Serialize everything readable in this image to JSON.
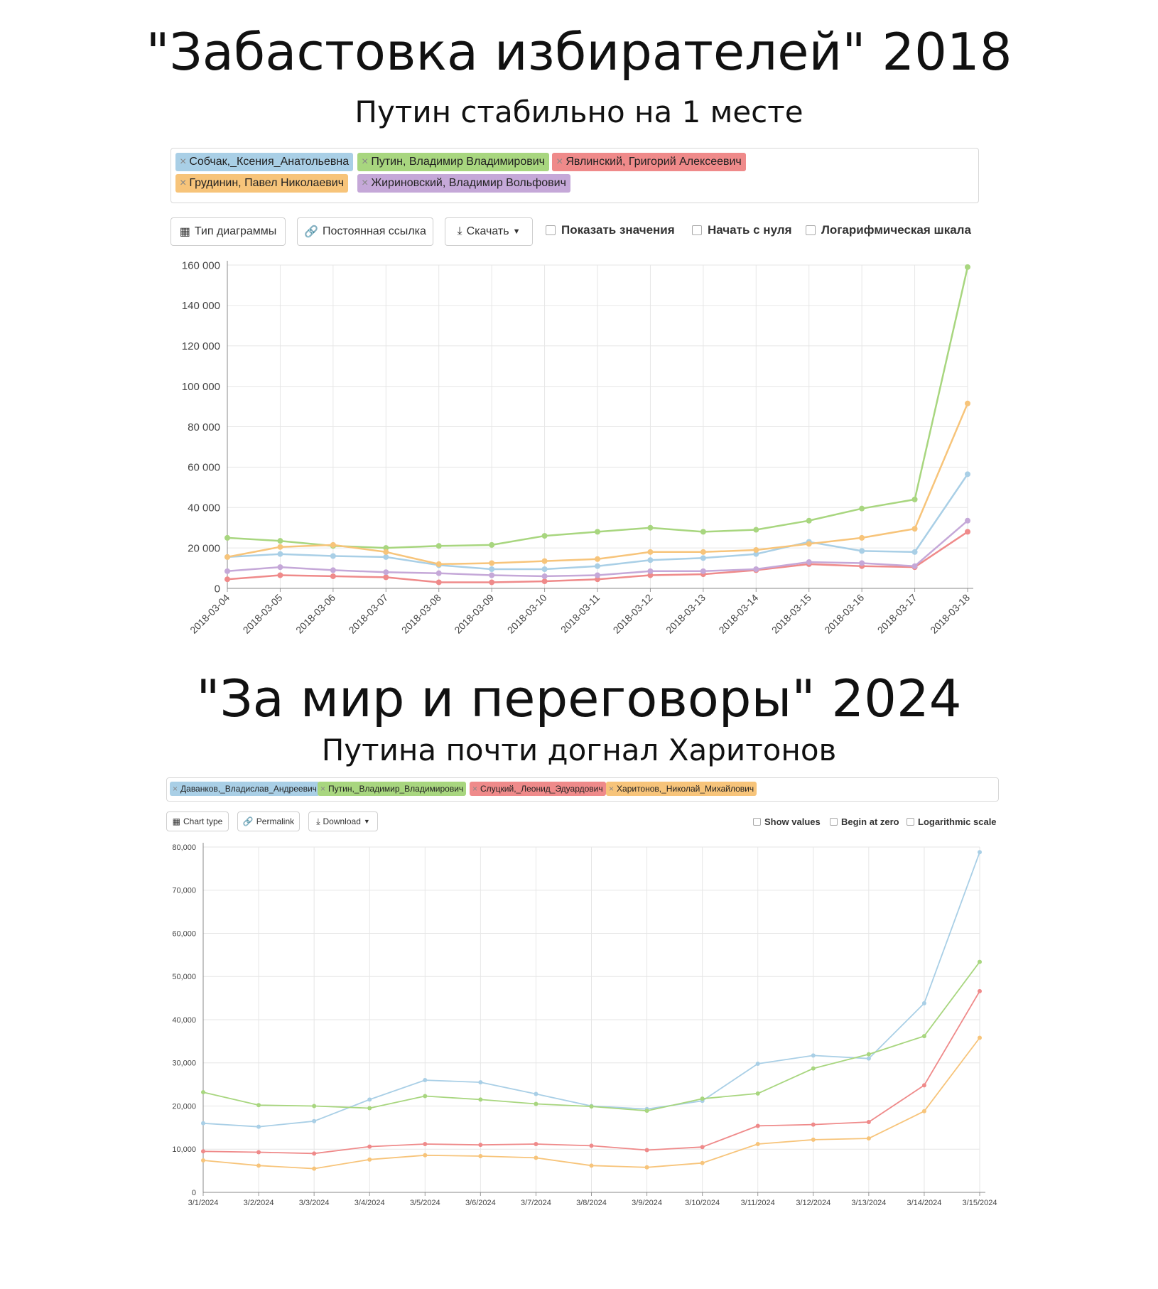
{
  "section1": {
    "title": "\"Забастовка избирателей\" 2018",
    "subtitle": "Путин стабильно на 1 месте",
    "toolbar": {
      "chart_type": "Тип диаграммы",
      "permalink": "Постоянная ссылка",
      "download": "Скачать",
      "show_values": "Показать значения",
      "begin_at_zero": "Начать с нуля",
      "log_scale": "Логарифмическая шкала"
    }
  },
  "section2": {
    "title": "\"За мир и переговоры\" 2024",
    "subtitle": "Путина почти догнал Харитонов",
    "toolbar": {
      "chart_type": "Chart type",
      "permalink": "Permalink",
      "download": "Download",
      "show_values": "Show values",
      "begin_at_zero": "Begin at zero",
      "log_scale": "Logarithmic scale"
    }
  },
  "icons": {
    "chart_type": "grid-icon",
    "permalink": "link-icon",
    "download": "download-icon",
    "remove": "close-icon"
  },
  "chart_data": [
    {
      "type": "line",
      "x": [
        "2018-03-04",
        "2018-03-05",
        "2018-03-06",
        "2018-03-07",
        "2018-03-08",
        "2018-03-09",
        "2018-03-10",
        "2018-03-11",
        "2018-03-12",
        "2018-03-13",
        "2018-03-14",
        "2018-03-15",
        "2018-03-16",
        "2018-03-17",
        "2018-03-18"
      ],
      "ylim": [
        0,
        160000
      ],
      "yticks": [
        0,
        20000,
        40000,
        60000,
        80000,
        100000,
        120000,
        140000,
        160000
      ],
      "ytick_labels": [
        "0",
        "20 000",
        "40 000",
        "60 000",
        "80 000",
        "100 000",
        "120 000",
        "140 000",
        "160 000"
      ],
      "grid": true,
      "legend_position": "top",
      "series": [
        {
          "name": "Собчак,_Ксения_Анатольевна",
          "color": "#a9cfe6",
          "values": [
            15500,
            17000,
            16000,
            15500,
            11500,
            9500,
            9500,
            11000,
            14000,
            15000,
            17000,
            23000,
            18500,
            18000,
            56500
          ]
        },
        {
          "name": "Путин, Владимир Владимирович",
          "color": "#a8d67f",
          "values": [
            25000,
            23500,
            21000,
            20000,
            21000,
            21500,
            26000,
            28000,
            30000,
            28000,
            29000,
            33500,
            39500,
            44000,
            159000
          ]
        },
        {
          "name": "Явлинский, Григорий Алексеевич",
          "color": "#ef8a8a",
          "values": [
            4500,
            6500,
            6000,
            5500,
            3000,
            3000,
            3500,
            4500,
            6500,
            7000,
            9000,
            12000,
            11000,
            10500,
            28000
          ]
        },
        {
          "name": "Грудинин, Павел Николаевич",
          "color": "#f7c47a",
          "values": [
            15500,
            20500,
            21500,
            18000,
            12000,
            12500,
            13500,
            14500,
            18000,
            18000,
            19000,
            22000,
            25000,
            29500,
            91500
          ]
        },
        {
          "name": "Жириновский, Владимир Вольфович",
          "color": "#c5a8d8",
          "values": [
            8500,
            10500,
            9000,
            8000,
            7500,
            6500,
            6000,
            6500,
            8500,
            8500,
            9500,
            13000,
            12500,
            11000,
            33500
          ]
        }
      ]
    },
    {
      "type": "line",
      "x": [
        "3/1/2024",
        "3/2/2024",
        "3/3/2024",
        "3/4/2024",
        "3/5/2024",
        "3/6/2024",
        "3/7/2024",
        "3/8/2024",
        "3/9/2024",
        "3/10/2024",
        "3/11/2024",
        "3/12/2024",
        "3/13/2024",
        "3/14/2024",
        "3/15/2024"
      ],
      "ylim": [
        0,
        80000
      ],
      "yticks": [
        0,
        10000,
        20000,
        30000,
        40000,
        50000,
        60000,
        70000,
        80000
      ],
      "ytick_labels": [
        "0",
        "10,000",
        "20,000",
        "30,000",
        "40,000",
        "50,000",
        "60,000",
        "70,000",
        "80,000"
      ],
      "grid": true,
      "legend_position": "top",
      "series": [
        {
          "name": "Даванков,_Владислав_Андреевич",
          "color": "#a9cfe6",
          "values": [
            16000,
            15200,
            16500,
            21500,
            26000,
            25500,
            22800,
            20000,
            19300,
            21200,
            29800,
            31700,
            31000,
            43800,
            78800
          ]
        },
        {
          "name": "Путин,_Владимир_Владимирович",
          "color": "#a8d67f",
          "values": [
            23200,
            20200,
            20000,
            19500,
            22300,
            21500,
            20500,
            19900,
            18900,
            21700,
            22900,
            28700,
            32000,
            36200,
            53400
          ]
        },
        {
          "name": "Слуцкий,_Леонид_Эдуардович",
          "color": "#ef8a8a",
          "values": [
            9500,
            9300,
            9000,
            10600,
            11200,
            11000,
            11200,
            10800,
            9800,
            10500,
            15400,
            15700,
            16300,
            24800,
            46600
          ]
        },
        {
          "name": "Харитонов,_Николай_Михайлович",
          "color": "#f7c47a",
          "values": [
            7400,
            6200,
            5500,
            7600,
            8600,
            8400,
            8000,
            6200,
            5800,
            6800,
            11200,
            12200,
            12500,
            18800,
            35800
          ]
        }
      ]
    }
  ]
}
